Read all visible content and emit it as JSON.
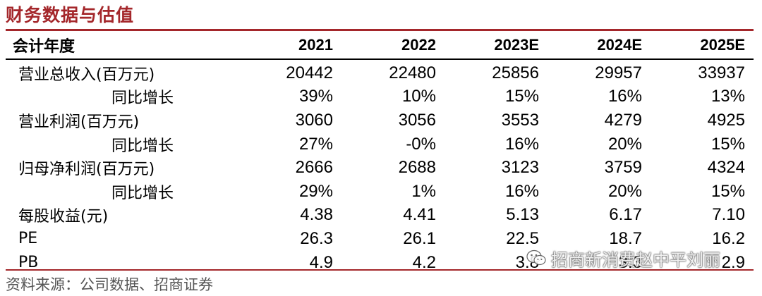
{
  "title": "财务数据与估值",
  "header": {
    "label": "会计年度",
    "years": [
      "2021",
      "2022",
      "2023E",
      "2024E",
      "2025E"
    ]
  },
  "rows": [
    {
      "label": "营业总收入(百万元)",
      "sub": false,
      "values": [
        "20442",
        "22480",
        "25856",
        "29957",
        "33937"
      ]
    },
    {
      "label": "同比增长",
      "sub": true,
      "values": [
        "39%",
        "10%",
        "15%",
        "16%",
        "13%"
      ]
    },
    {
      "label": "营业利润(百万元)",
      "sub": false,
      "values": [
        "3060",
        "3056",
        "3553",
        "4279",
        "4925"
      ]
    },
    {
      "label": "同比增长",
      "sub": true,
      "values": [
        "27%",
        "-0%",
        "16%",
        "20%",
        "15%"
      ]
    },
    {
      "label": "归母净利润(百万元)",
      "sub": false,
      "values": [
        "2666",
        "2688",
        "3123",
        "3759",
        "4324"
      ]
    },
    {
      "label": "同比增长",
      "sub": true,
      "values": [
        "29%",
        "1%",
        "16%",
        "20%",
        "15%"
      ]
    },
    {
      "label": "每股收益(元)",
      "sub": false,
      "values": [
        "4.38",
        "4.41",
        "5.13",
        "6.17",
        "7.10"
      ]
    },
    {
      "label": "PE",
      "sub": false,
      "values": [
        "26.3",
        "26.1",
        "22.5",
        "18.7",
        "16.2"
      ]
    },
    {
      "label": "PB",
      "sub": false,
      "values": [
        "4.9",
        "4.2",
        "3.8",
        "3.3",
        "2.9"
      ]
    }
  ],
  "source": "资料来源：公司数据、招商证券",
  "watermark": {
    "text": "招商新消费赵中平刘丽",
    "icon": "wechat-icon"
  },
  "colors": {
    "accent": "#a4272b",
    "source_text": "#555555"
  }
}
